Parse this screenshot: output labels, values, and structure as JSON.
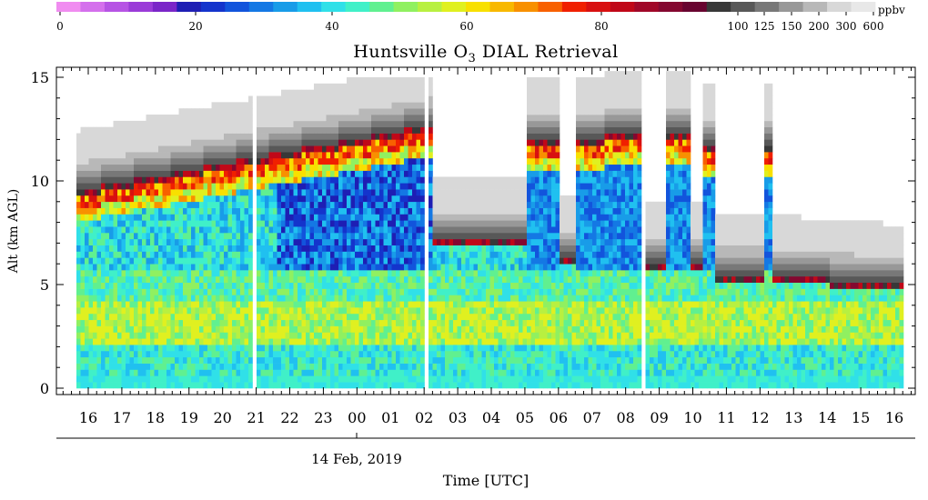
{
  "chart_data": {
    "type": "heatmap",
    "title": "Huntsville O3 DIAL Retrieval",
    "title_main": "Huntsville O",
    "title_sub": "3",
    "title_rest": " DIAL Retrieval",
    "ylabel": "Alt (km AGL)",
    "xlabel": "Time [UTC]",
    "date_label": "14 Feb, 2019",
    "ylim": [
      0,
      15.5
    ],
    "y_ticks": [
      "0",
      "5",
      "10",
      "15"
    ],
    "x_ticks": [
      "16",
      "17",
      "18",
      "19",
      "20",
      "21",
      "22",
      "23",
      "00",
      "01",
      "02",
      "03",
      "04",
      "05",
      "06",
      "07",
      "08",
      "09",
      "10",
      "11",
      "12",
      "13",
      "14",
      "15",
      "16"
    ],
    "colorbar": {
      "unit": "ppbv",
      "labels": [
        "0",
        "20",
        "40",
        "60",
        "80",
        "100",
        "125",
        "150",
        "200",
        "300",
        "600"
      ],
      "colors": [
        "#f08cf0",
        "#d470ec",
        "#b654e4",
        "#9a3cd8",
        "#7a26c8",
        "#1e1eb4",
        "#1434cc",
        "#1254dc",
        "#1478e4",
        "#189ce8",
        "#20c0f0",
        "#30e0e8",
        "#40f0c8",
        "#60f090",
        "#90f060",
        "#b8f040",
        "#e0f020",
        "#f8e000",
        "#f8b800",
        "#f89000",
        "#f86000",
        "#f02000",
        "#d81010",
        "#c00818",
        "#a00828",
        "#840830",
        "#680430",
        "#383838",
        "#585858",
        "#787878",
        "#989898",
        "#b8b8b8",
        "#d8d8d8",
        "#e8e8e8"
      ]
    },
    "grid": false,
    "legend": "colorbar-top"
  }
}
